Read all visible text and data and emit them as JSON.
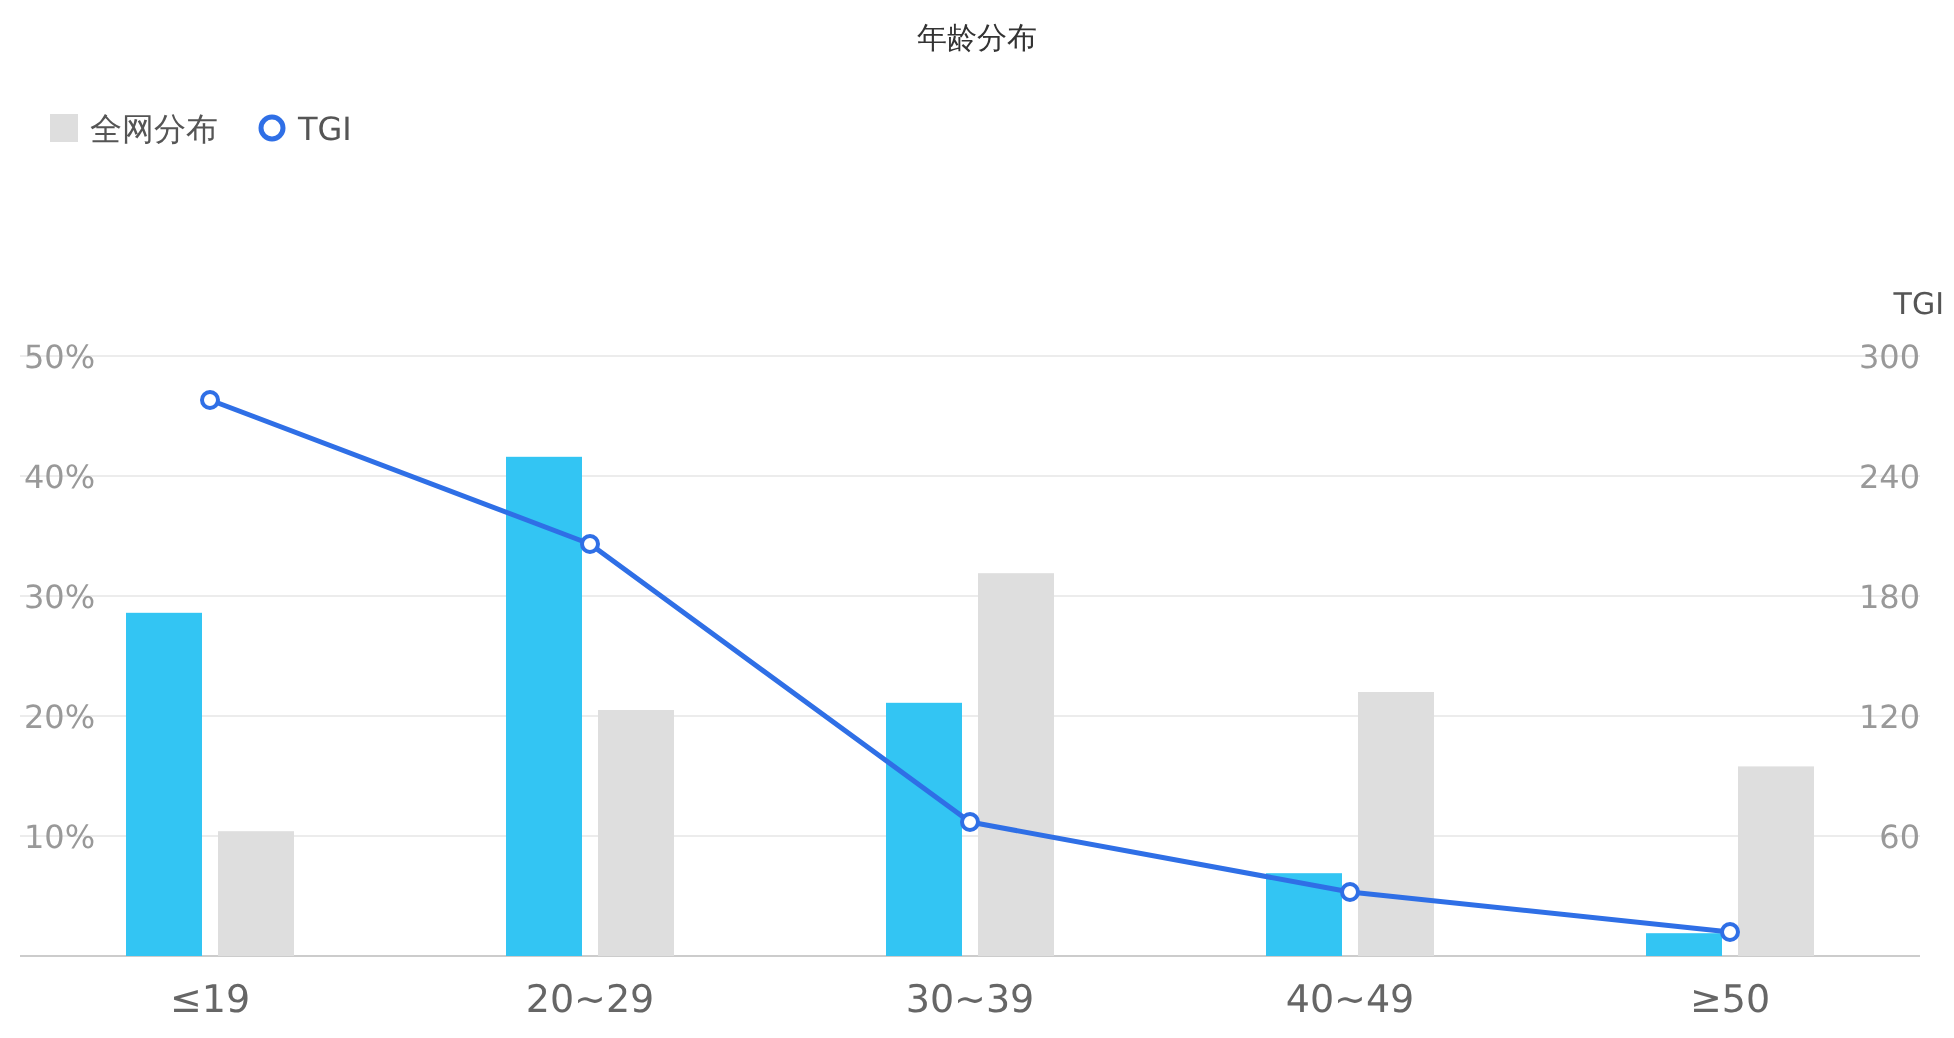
{
  "chart_data": {
    "type": "bar",
    "title": "年龄分布",
    "y2label": "TGI",
    "categories": [
      "≤19",
      "20~29",
      "30~39",
      "40~49",
      "≥50"
    ],
    "series": [
      {
        "color": "#33c5f3",
        "values": [
          28.6,
          41.6,
          21.1,
          6.9,
          1.9
        ]
      },
      {
        "name": "全网分布",
        "color": "#dedede",
        "values": [
          10.4,
          20.5,
          31.9,
          22.0,
          15.8
        ]
      },
      {
        "name": "TGI",
        "type": "line",
        "axis": "y2",
        "marker": "circle",
        "color": "#2f6fe6",
        "values": [
          278,
          206,
          67,
          32,
          12
        ]
      }
    ],
    "ylim": [
      0,
      50
    ],
    "yticks": [
      {
        "value": 10,
        "label": "10%"
      },
      {
        "value": 20,
        "label": "20%"
      },
      {
        "value": 30,
        "label": "30%"
      },
      {
        "value": 40,
        "label": "40%"
      },
      {
        "value": 50,
        "label": "50%"
      }
    ],
    "y2lim": [
      0,
      300
    ],
    "y2ticks": [
      60,
      120,
      180,
      240,
      300
    ],
    "grid": "y",
    "legend": "top left"
  }
}
